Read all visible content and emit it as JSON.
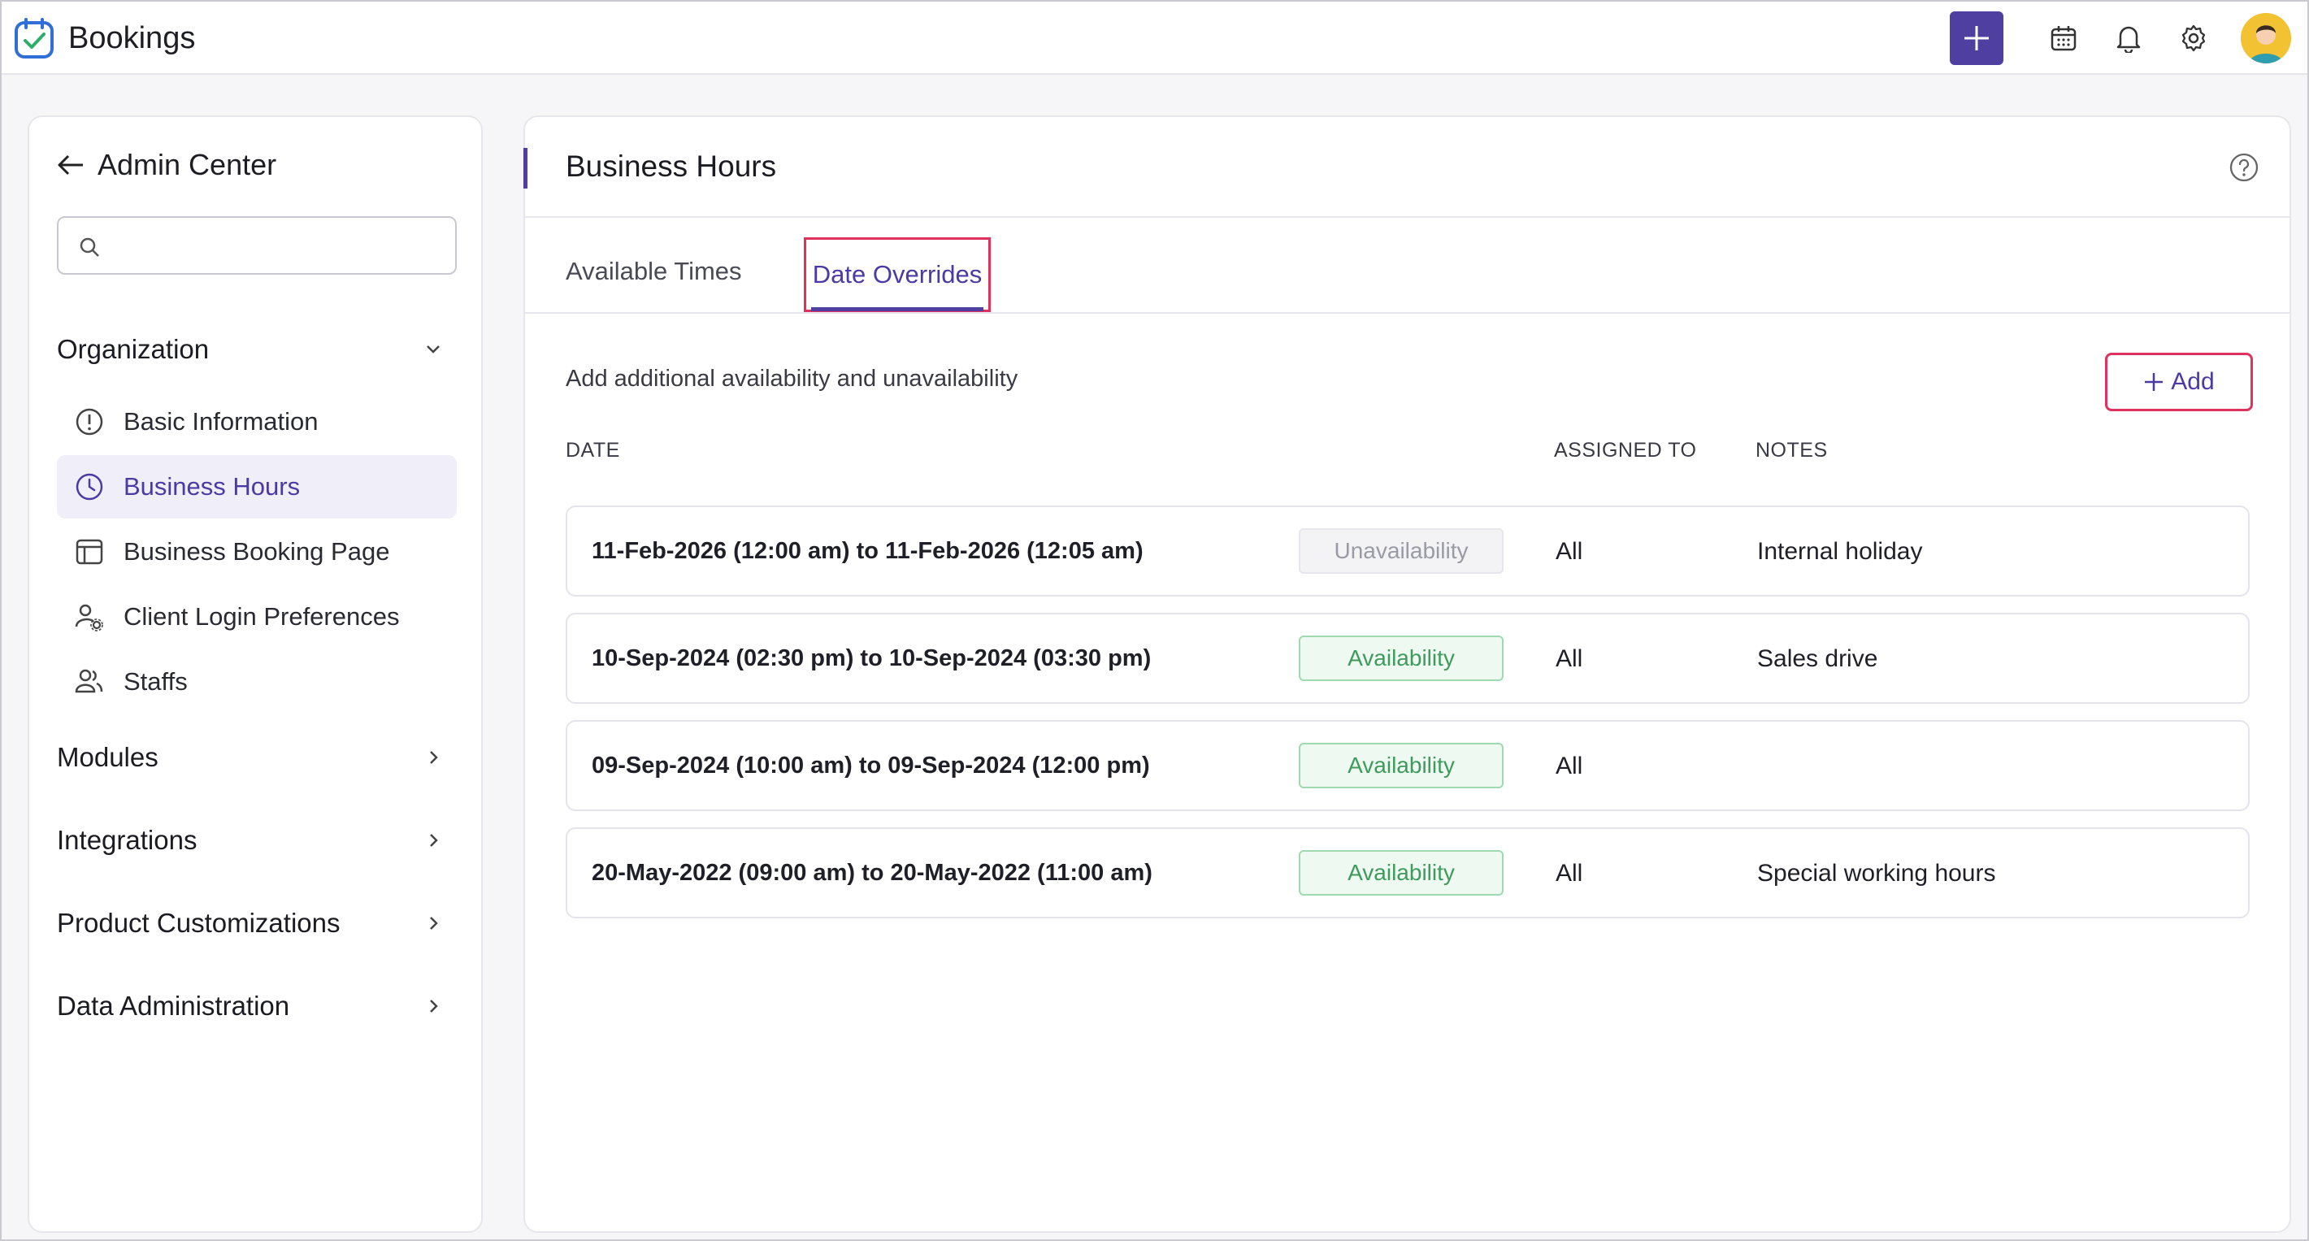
{
  "app": {
    "title": "Bookings"
  },
  "topbar": {
    "icons": [
      "plus-icon",
      "calendar-icon",
      "bell-icon",
      "gear-icon",
      "avatar"
    ]
  },
  "sidebar": {
    "title": "Admin Center",
    "search_placeholder": "",
    "organization_label": "Organization",
    "items": [
      {
        "label": "Basic Information",
        "icon": "info-icon"
      },
      {
        "label": "Business Hours",
        "icon": "clock-icon",
        "active": true
      },
      {
        "label": "Business Booking Page",
        "icon": "browser-icon"
      },
      {
        "label": "Client Login Preferences",
        "icon": "user-gear-icon"
      },
      {
        "label": "Staffs",
        "icon": "users-icon"
      }
    ],
    "sections": [
      {
        "label": "Modules"
      },
      {
        "label": "Integrations"
      },
      {
        "label": "Product Customizations"
      },
      {
        "label": "Data Administration"
      }
    ]
  },
  "main": {
    "title": "Business Hours",
    "tabs": [
      {
        "label": "Available Times"
      },
      {
        "label": "Date Overrides",
        "active": true
      }
    ],
    "description": "Add additional availability and unavailability",
    "add_label": "Add",
    "columns": {
      "date": "DATE",
      "assigned": "ASSIGNED TO",
      "notes": "NOTES"
    },
    "rows": [
      {
        "date": "11-Feb-2026 (12:00 am) to 11-Feb-2026 (12:05 am)",
        "type": "Unavailability",
        "assigned": "All",
        "notes": "Internal holiday"
      },
      {
        "date": "10-Sep-2024 (02:30 pm) to 10-Sep-2024 (03:30 pm)",
        "type": "Availability",
        "assigned": "All",
        "notes": "Sales drive"
      },
      {
        "date": "09-Sep-2024 (10:00 am) to 09-Sep-2024 (12:00 pm)",
        "type": "Availability",
        "assigned": "All",
        "notes": ""
      },
      {
        "date": "20-May-2022 (09:00 am) to 20-May-2022 (11:00 am)",
        "type": "Availability",
        "assigned": "All",
        "notes": "Special working hours"
      }
    ]
  },
  "colors": {
    "accent": "#4f3fa0",
    "highlight_box": "#e0325e",
    "availability_green": "#3f9a5d",
    "unavailability_gray": "#9a9aa4"
  }
}
